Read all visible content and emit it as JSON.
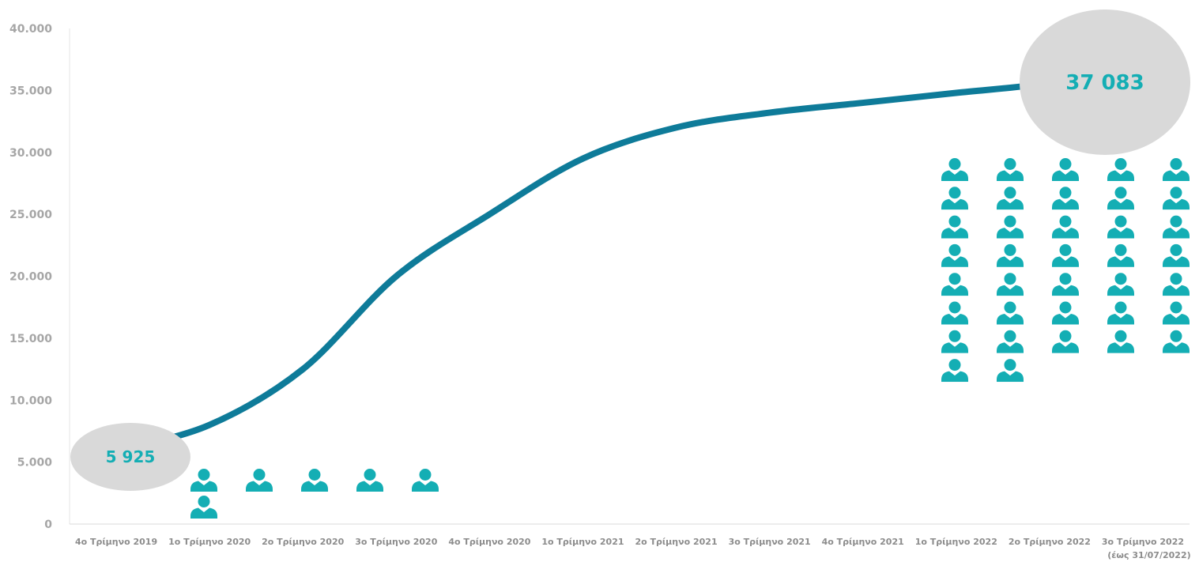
{
  "chart_data": {
    "type": "line",
    "categories": [
      "4ο Τρίμηνο 2019",
      "1ο Τρίμηνο 2020",
      "2ο Τρίμηνο 2020",
      "3ο Τρίμηνο 2020",
      "4ο Τρίμηνο 2020",
      "1ο Τρίμηνο 2021",
      "2ο Τρίμηνο 2021",
      "3ο Τρίμηνο 2021",
      "4ο Τρίμηνο 2021",
      "1ο Τρίμηνο 2022",
      "2ο Τρίμηνο 2022",
      "3ο Τρίμηνο 2022"
    ],
    "last_category_note": "(έως 31/07/2022)",
    "series": [
      {
        "values": [
          5925,
          8000,
          12500,
          20000,
          25000,
          29500,
          32000,
          33200,
          34000,
          34800,
          35600,
          37083
        ]
      }
    ],
    "ylim": [
      0,
      40000
    ],
    "yticks": [
      "0",
      "5.000",
      "10.000",
      "15.000",
      "20.000",
      "25.000",
      "30.000",
      "35.000",
      "40.000"
    ],
    "ytick_values": [
      0,
      5000,
      10000,
      15000,
      20000,
      25000,
      30000,
      35000,
      40000
    ],
    "callouts": [
      {
        "label": "5 925",
        "category_index": 0
      },
      {
        "label": "37 083",
        "category_index": 11
      }
    ],
    "icon_groups": [
      {
        "name": "start",
        "count": 6
      },
      {
        "name": "end",
        "count": 37
      }
    ],
    "colors": {
      "line": "#0e7b99",
      "icon": "#14aeb4",
      "callout_fill": "#d9d9d9",
      "callout_text": "#14aeb4"
    },
    "grid": false,
    "legend": "none"
  }
}
